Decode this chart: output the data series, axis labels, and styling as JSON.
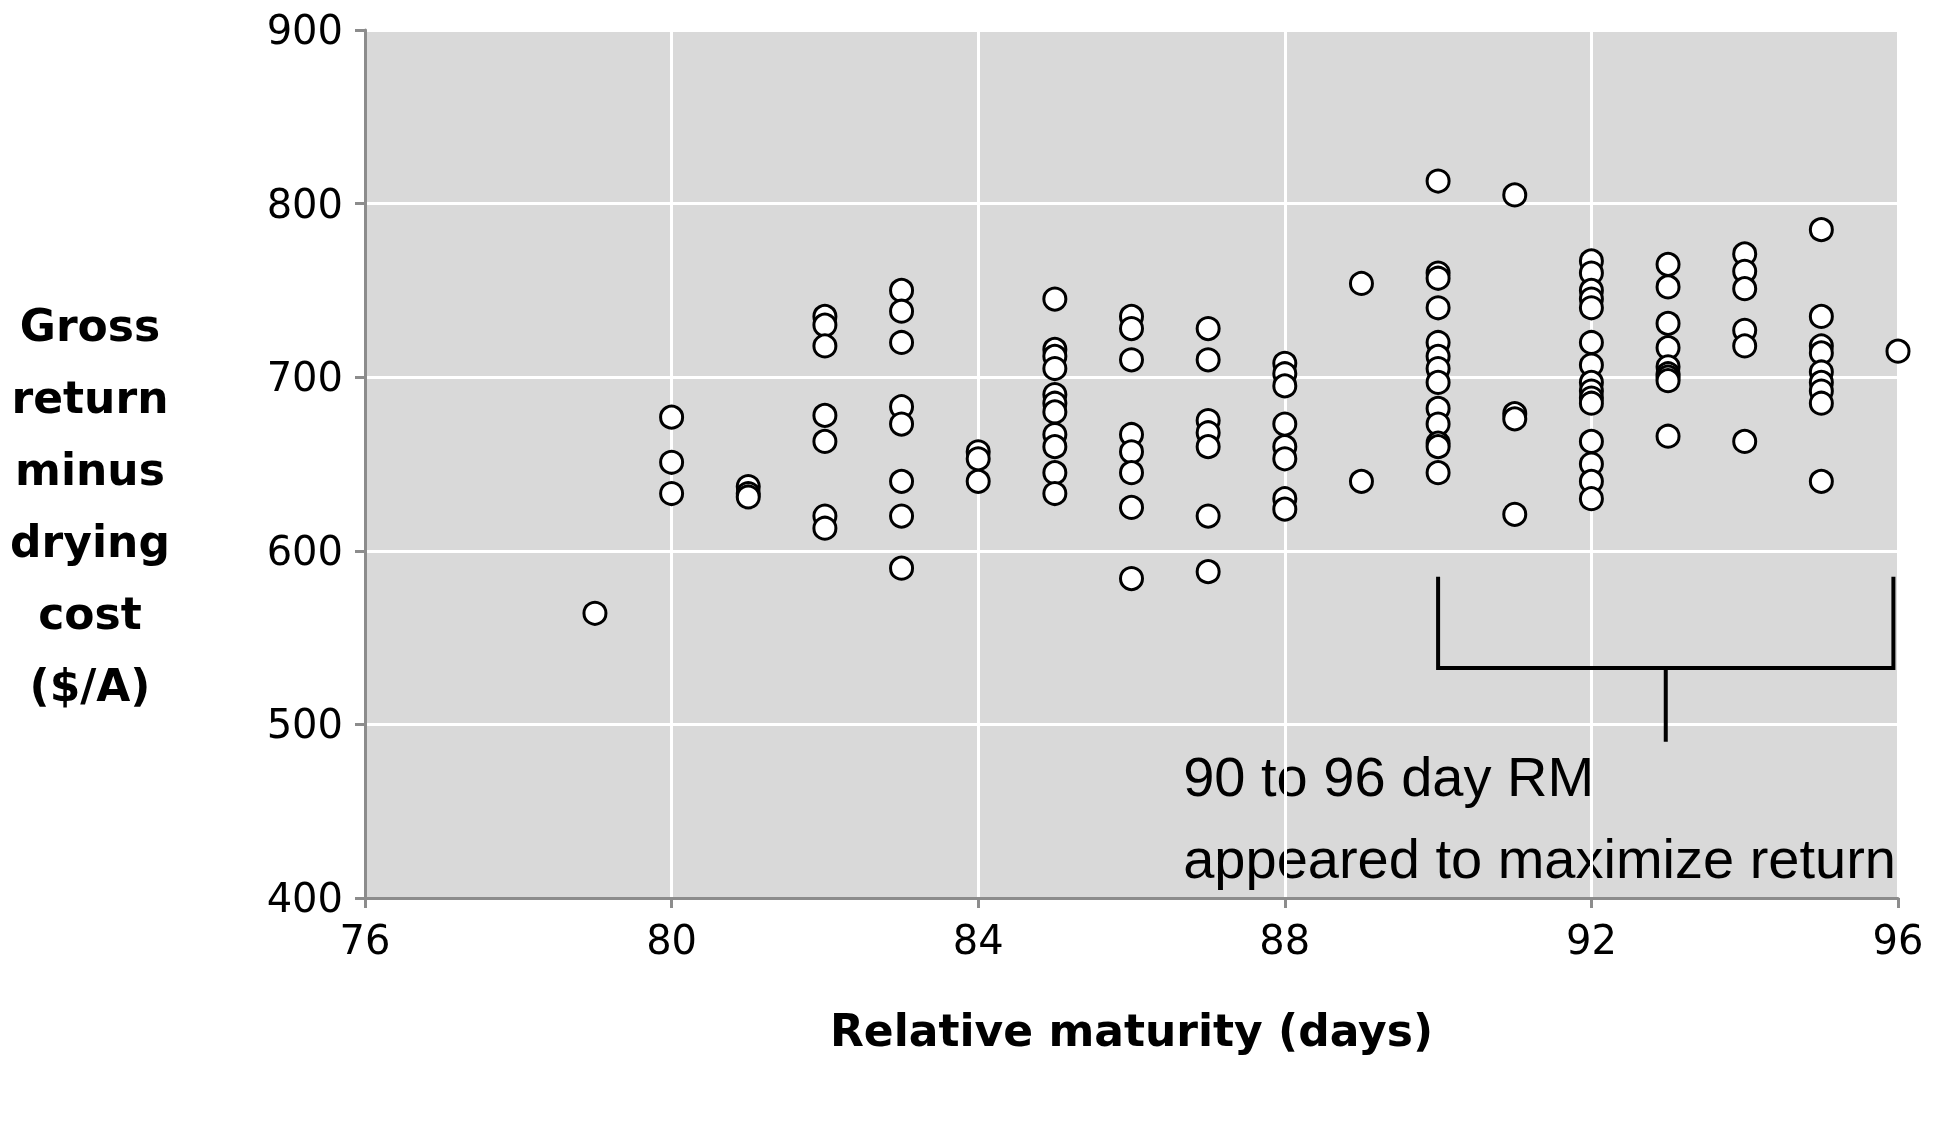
{
  "chart_data": {
    "type": "scatter",
    "xlabel": "Relative maturity (days)",
    "ylabel": "Gross return minus drying cost ($/A)",
    "x": [
      79,
      80,
      80,
      80,
      81,
      81,
      81,
      82,
      82,
      82,
      82,
      82,
      82,
      82,
      83,
      83,
      83,
      83,
      83,
      83,
      83,
      83,
      84,
      84,
      84,
      85,
      85,
      85,
      85,
      85,
      85,
      85,
      85,
      85,
      85,
      85,
      86,
      86,
      86,
      86,
      86,
      86,
      86,
      86,
      87,
      87,
      87,
      87,
      87,
      87,
      87,
      88,
      88,
      88,
      88,
      88,
      88,
      88,
      88,
      89,
      89,
      90,
      90,
      90,
      90,
      90,
      90,
      90,
      90,
      90,
      90,
      90,
      90,
      90,
      91,
      91,
      91,
      91,
      92,
      92,
      92,
      92,
      92,
      92,
      92,
      92,
      92,
      92,
      92,
      92,
      92,
      92,
      92,
      93,
      93,
      93,
      93,
      93,
      93,
      93,
      93,
      93,
      94,
      94,
      94,
      94,
      94,
      94,
      95,
      95,
      95,
      95,
      95,
      95,
      95,
      95,
      95,
      96
    ],
    "series": [
      {
        "color": "#ffffff",
        "values": [
          564,
          677,
          651,
          633,
          637,
          633,
          631,
          735,
          730,
          718,
          678,
          663,
          620,
          613,
          750,
          738,
          720,
          683,
          673,
          640,
          620,
          590,
          657,
          653,
          640,
          745,
          716,
          712,
          705,
          690,
          685,
          680,
          667,
          660,
          645,
          633,
          735,
          728,
          710,
          667,
          657,
          645,
          625,
          584,
          728,
          710,
          675,
          668,
          660,
          620,
          588,
          708,
          702,
          695,
          673,
          660,
          653,
          630,
          624,
          754,
          640,
          813,
          760,
          757,
          740,
          720,
          712,
          705,
          697,
          682,
          673,
          662,
          660,
          645,
          805,
          679,
          676,
          621,
          767,
          760,
          750,
          745,
          740,
          720,
          707,
          697,
          692,
          688,
          685,
          663,
          650,
          640,
          630,
          765,
          752,
          731,
          717,
          706,
          702,
          700,
          698,
          666,
          771,
          761,
          751,
          727,
          718,
          663,
          785,
          735,
          718,
          714,
          703,
          697,
          692,
          685,
          640,
          715
        ]
      }
    ],
    "xlim": [
      76,
      96
    ],
    "xticks": [
      76,
      80,
      84,
      88,
      92,
      96
    ],
    "ylim": [
      400,
      900
    ],
    "yticks": [
      400,
      500,
      600,
      700,
      800,
      900
    ],
    "grid": true,
    "marker": "circle",
    "annotations": [
      "90 to 96 day RM\nappeared to maximize return"
    ]
  }
}
